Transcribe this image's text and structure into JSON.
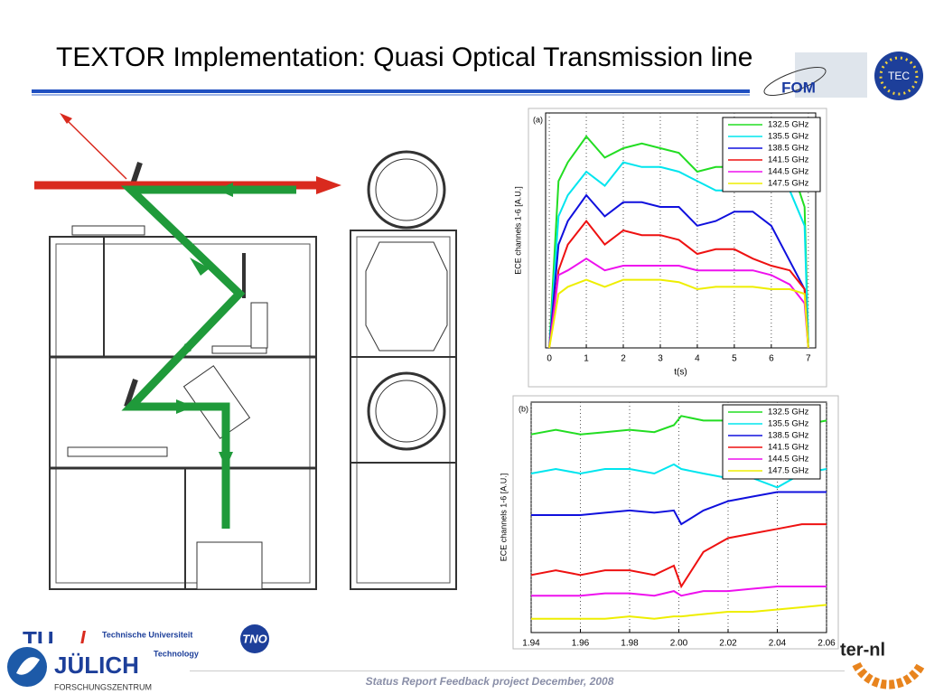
{
  "header": {
    "title": "TEXTOR Implementation: Quasi Optical Transmission line",
    "logos": [
      "FOM",
      "TEC"
    ]
  },
  "chart_data": [
    {
      "type": "line",
      "panel_label": "(a)",
      "x_label": "t(s)",
      "y_label": "ECE channels 1-6 [A.U.]",
      "x": [
        0,
        0.25,
        0.5,
        1,
        1.5,
        2,
        2.5,
        3,
        3.5,
        4,
        4.5,
        5,
        5.5,
        6,
        6.5,
        6.9,
        7
      ],
      "xlim": [
        -0.1,
        7.2
      ],
      "xticks": [
        0,
        1,
        2,
        3,
        4,
        5,
        6,
        7
      ],
      "ylim": [
        0,
        10
      ],
      "grid": true,
      "series": [
        {
          "name": "132.5 GHz",
          "color": "#22dd22",
          "values": [
            0,
            7.1,
            7.9,
            9.0,
            8.1,
            8.5,
            8.7,
            8.5,
            8.3,
            7.5,
            7.7,
            7.7,
            7.9,
            7.7,
            7.9,
            6.0,
            0.2
          ]
        },
        {
          "name": "135.5 GHz",
          "color": "#00e5ee",
          "values": [
            0,
            5.6,
            6.5,
            7.5,
            6.9,
            7.9,
            7.7,
            7.7,
            7.5,
            7.1,
            6.7,
            6.7,
            7.1,
            6.7,
            6.7,
            5.2,
            0
          ]
        },
        {
          "name": "138.5 GHz",
          "color": "#1010dd",
          "values": [
            0,
            4.4,
            5.4,
            6.5,
            5.6,
            6.2,
            6.2,
            6.0,
            6.0,
            5.2,
            5.4,
            5.8,
            5.8,
            5.2,
            3.7,
            2.5,
            0
          ]
        },
        {
          "name": "141.5 GHz",
          "color": "#ee1111",
          "values": [
            0,
            3.3,
            4.4,
            5.4,
            4.4,
            5.0,
            4.8,
            4.8,
            4.6,
            4.0,
            4.2,
            4.2,
            3.8,
            3.5,
            3.3,
            2.5,
            0
          ]
        },
        {
          "name": "144.5 GHz",
          "color": "#ee11ee",
          "values": [
            0,
            3.1,
            3.3,
            3.8,
            3.3,
            3.5,
            3.5,
            3.5,
            3.5,
            3.3,
            3.3,
            3.3,
            3.3,
            3.1,
            2.7,
            1.9,
            0
          ]
        },
        {
          "name": "147.5 GHz",
          "color": "#eeee00",
          "values": [
            0,
            2.3,
            2.6,
            2.9,
            2.6,
            2.9,
            2.9,
            2.9,
            2.8,
            2.5,
            2.6,
            2.6,
            2.6,
            2.5,
            2.5,
            2.3,
            0
          ]
        }
      ]
    },
    {
      "type": "line",
      "panel_label": "(b)",
      "y_label": "ECE channels 1-6 [A.U.]",
      "x": [
        1.94,
        1.95,
        1.96,
        1.97,
        1.98,
        1.99,
        1.998,
        2.001,
        2.01,
        2.02,
        2.03,
        2.04,
        2.05,
        2.06
      ],
      "xlim": [
        1.94,
        2.06
      ],
      "xticks": [
        1.94,
        1.96,
        1.98,
        {
          "value": 2,
          "label": "2.00"
        },
        2.02,
        2.04,
        2.06
      ],
      "ylim": [
        0,
        10
      ],
      "grid": true,
      "series": [
        {
          "name": "132.5 GHz",
          "color": "#22dd22",
          "values": [
            8.6,
            8.8,
            8.6,
            8.7,
            8.8,
            8.7,
            9.0,
            9.4,
            9.2,
            9.2,
            9.0,
            9.0,
            9.0,
            9.2
          ]
        },
        {
          "name": "135.5 GHz",
          "color": "#00e5ee",
          "values": [
            6.9,
            7.1,
            6.9,
            7.1,
            7.1,
            6.9,
            7.3,
            7.1,
            6.9,
            6.7,
            6.7,
            6.3,
            6.9,
            7.1
          ]
        },
        {
          "name": "138.5 GHz",
          "color": "#1010dd",
          "values": [
            5.1,
            5.1,
            5.1,
            5.2,
            5.3,
            5.2,
            5.3,
            4.7,
            5.3,
            5.7,
            5.9,
            6.1,
            6.1,
            6.1
          ]
        },
        {
          "name": "141.5 GHz",
          "color": "#ee1111",
          "values": [
            2.5,
            2.7,
            2.5,
            2.7,
            2.7,
            2.5,
            2.9,
            2.0,
            3.5,
            4.1,
            4.3,
            4.5,
            4.7,
            4.7
          ]
        },
        {
          "name": "144.5 GHz",
          "color": "#ee11ee",
          "values": [
            1.6,
            1.6,
            1.6,
            1.7,
            1.7,
            1.6,
            1.8,
            1.6,
            1.8,
            1.8,
            1.9,
            2.0,
            2.0,
            2.0
          ]
        },
        {
          "name": "147.5 GHz",
          "color": "#eeee00",
          "values": [
            0.6,
            0.6,
            0.6,
            0.6,
            0.7,
            0.6,
            0.7,
            0.7,
            0.8,
            0.9,
            0.9,
            1.0,
            1.1,
            1.2
          ]
        }
      ]
    }
  ],
  "footer": {
    "note": "Status Report Feedback project December, 2008",
    "logos": {
      "tue": "Technische Universiteit",
      "tue_sub": "Technology",
      "juelich": "JÜLICH",
      "juelich_sub": "FORSCHUNGSZENTRUM",
      "tno": "TNO",
      "iter": "ter-nl"
    }
  }
}
